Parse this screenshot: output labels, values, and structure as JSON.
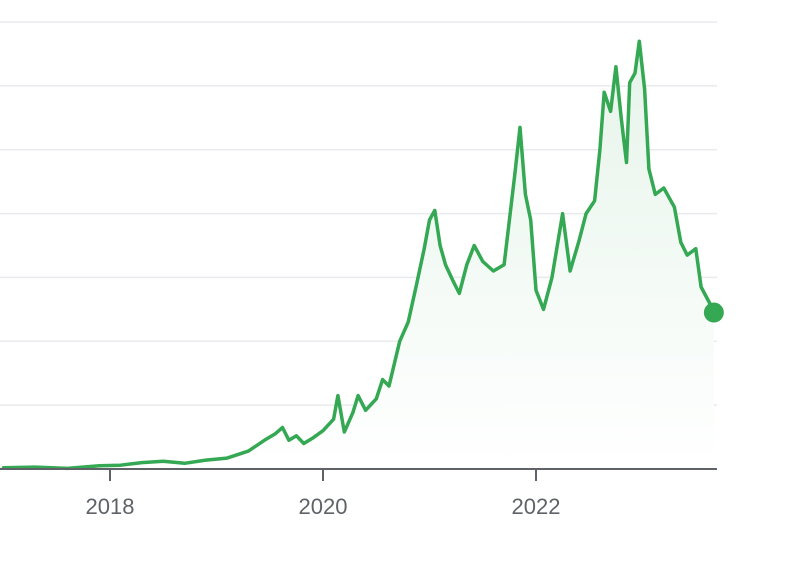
{
  "chart_data": {
    "type": "area",
    "title": "",
    "xlabel": "",
    "ylabel": "",
    "x_ticks": [
      "2018",
      "2020",
      "2022"
    ],
    "y_gridlines": 7,
    "ylim": [
      0,
      7
    ],
    "xlim": [
      2017.0,
      2023.67
    ],
    "grid": "horizontal",
    "colors": {
      "line": "#34a853",
      "area_top": "#e6f4ea",
      "grid": "#e8eaed",
      "axis": "#5f6368"
    },
    "series": [
      {
        "points": [
          [
            2017.0,
            0.02
          ],
          [
            2017.3,
            0.03
          ],
          [
            2017.6,
            0.01
          ],
          [
            2017.9,
            0.05
          ],
          [
            2018.1,
            0.06
          ],
          [
            2018.3,
            0.1
          ],
          [
            2018.5,
            0.12
          ],
          [
            2018.7,
            0.09
          ],
          [
            2018.9,
            0.14
          ],
          [
            2019.1,
            0.17
          ],
          [
            2019.3,
            0.28
          ],
          [
            2019.45,
            0.45
          ],
          [
            2019.55,
            0.55
          ],
          [
            2019.62,
            0.65
          ],
          [
            2019.68,
            0.45
          ],
          [
            2019.75,
            0.52
          ],
          [
            2019.82,
            0.4
          ],
          [
            2019.9,
            0.48
          ],
          [
            2020.0,
            0.6
          ],
          [
            2020.1,
            0.78
          ],
          [
            2020.14,
            1.15
          ],
          [
            2020.2,
            0.58
          ],
          [
            2020.28,
            0.88
          ],
          [
            2020.33,
            1.15
          ],
          [
            2020.4,
            0.92
          ],
          [
            2020.5,
            1.1
          ],
          [
            2020.56,
            1.4
          ],
          [
            2020.62,
            1.3
          ],
          [
            2020.72,
            2.0
          ],
          [
            2020.8,
            2.3
          ],
          [
            2020.88,
            2.9
          ],
          [
            2020.95,
            3.45
          ],
          [
            2021.0,
            3.9
          ],
          [
            2021.05,
            4.05
          ],
          [
            2021.1,
            3.5
          ],
          [
            2021.15,
            3.2
          ],
          [
            2021.22,
            2.95
          ],
          [
            2021.28,
            2.75
          ],
          [
            2021.35,
            3.2
          ],
          [
            2021.42,
            3.5
          ],
          [
            2021.5,
            3.25
          ],
          [
            2021.6,
            3.1
          ],
          [
            2021.7,
            3.2
          ],
          [
            2021.8,
            4.6
          ],
          [
            2021.85,
            5.35
          ],
          [
            2021.9,
            4.3
          ],
          [
            2021.95,
            3.9
          ],
          [
            2022.0,
            2.8
          ],
          [
            2022.07,
            2.5
          ],
          [
            2022.15,
            3.0
          ],
          [
            2022.2,
            3.5
          ],
          [
            2022.25,
            4.0
          ],
          [
            2022.32,
            3.1
          ],
          [
            2022.4,
            3.55
          ],
          [
            2022.47,
            4.0
          ],
          [
            2022.55,
            4.2
          ],
          [
            2022.6,
            5.0
          ],
          [
            2022.64,
            5.9
          ],
          [
            2022.7,
            5.6
          ],
          [
            2022.75,
            6.3
          ],
          [
            2022.8,
            5.5
          ],
          [
            2022.85,
            4.8
          ],
          [
            2022.88,
            6.05
          ],
          [
            2022.93,
            6.2
          ],
          [
            2022.97,
            6.7
          ],
          [
            2023.02,
            5.95
          ],
          [
            2023.06,
            4.7
          ],
          [
            2023.12,
            4.3
          ],
          [
            2023.2,
            4.4
          ],
          [
            2023.3,
            4.1
          ],
          [
            2023.36,
            3.55
          ],
          [
            2023.42,
            3.35
          ],
          [
            2023.5,
            3.45
          ],
          [
            2023.55,
            2.85
          ],
          [
            2023.63,
            2.6
          ],
          [
            2023.67,
            2.45
          ]
        ]
      }
    ]
  }
}
